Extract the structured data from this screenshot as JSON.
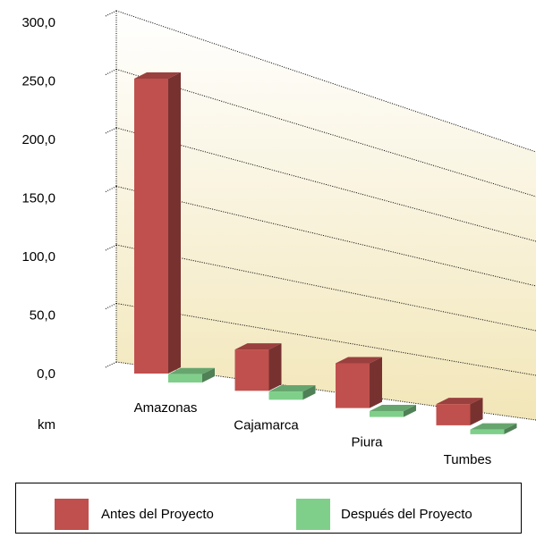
{
  "chart_data": {
    "type": "bar3d",
    "y_label": "km",
    "categories": [
      "Amazonas",
      "Cajamarca",
      "Piura",
      "Tumbes"
    ],
    "series": [
      {
        "name": "Antes del Proyecto",
        "color": "#c0504d",
        "values": [
          250,
          35,
          38,
          18
        ]
      },
      {
        "name": "Después del Proyecto",
        "color": "#7fcf8a",
        "values": [
          7,
          7,
          5,
          4
        ]
      }
    ],
    "ylim": [
      0,
      300
    ],
    "yticks": [
      {
        "value": 0,
        "label": "0,0"
      },
      {
        "value": 50,
        "label": "50,0"
      },
      {
        "value": 100,
        "label": "100,0"
      },
      {
        "value": 150,
        "label": "150,0"
      },
      {
        "value": 200,
        "label": "200,0"
      },
      {
        "value": 250,
        "label": "250,0"
      },
      {
        "value": 300,
        "label": "300,0"
      }
    ],
    "grid": true
  }
}
